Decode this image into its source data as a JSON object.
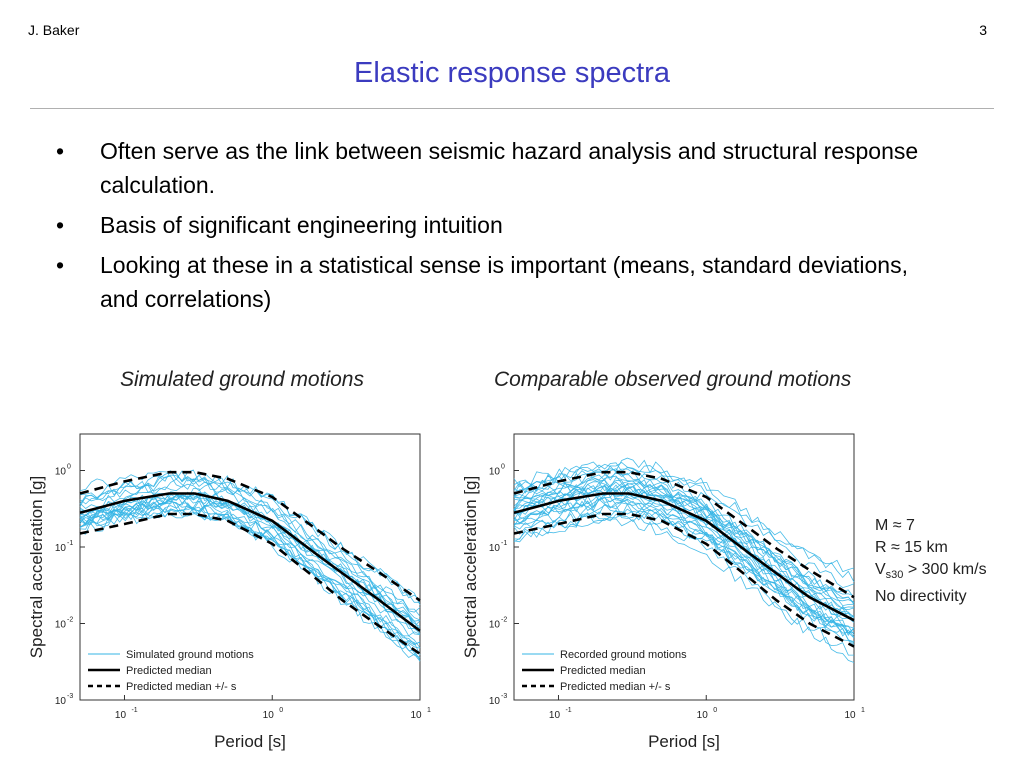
{
  "header": {
    "author": "J. Baker",
    "page_number": "3"
  },
  "title": "Elastic response spectra",
  "bullets": [
    "Often serve as the link between seismic hazard analysis and structural response calculation.",
    "Basis of significant engineering intuition",
    "Looking at these in a statistical sense is important (means, standard deviations, and correlations)"
  ],
  "captions": {
    "left": "Simulated ground motions",
    "right": "Comparable observed ground motions"
  },
  "scenario": {
    "m": "M ≈ 7",
    "r": "R ≈ 15 km",
    "vs_base": "V",
    "vs_sub": "s30",
    "vs_rest": " > 300 km/s",
    "directivity": "No directivity"
  },
  "colors": {
    "title": "#3b3bbf",
    "motions": "#35b5e5",
    "median": "#000000"
  },
  "chart_data": [
    {
      "type": "line",
      "xlabel": "Period [s]",
      "ylabel": "Spectral acceleration [g]",
      "xscale": "log",
      "yscale": "log",
      "xlim": [
        0.05,
        10
      ],
      "ylim": [
        0.001,
        3
      ],
      "x_ticks": [
        {
          "base": "10",
          "exp": "-1"
        },
        {
          "base": "10",
          "exp": "0"
        },
        {
          "base": "10",
          "exp": "1"
        }
      ],
      "y_ticks": [
        {
          "base": "10",
          "exp": "0"
        },
        {
          "base": "10",
          "exp": "-1"
        },
        {
          "base": "10",
          "exp": "-2"
        },
        {
          "base": "10",
          "exp": "-3"
        }
      ],
      "legend": [
        "Simulated ground motions",
        "Predicted median",
        "Predicted median +/-   s"
      ],
      "legend_position": "bottom-left",
      "x": [
        0.05,
        0.1,
        0.2,
        0.3,
        0.5,
        1,
        2,
        3,
        5,
        10
      ],
      "series": [
        {
          "name": "Predicted median",
          "values": [
            0.28,
            0.4,
            0.5,
            0.5,
            0.4,
            0.22,
            0.08,
            0.045,
            0.022,
            0.008
          ]
        },
        {
          "name": "Predicted median +/-   s",
          "values": [
            0.5,
            0.72,
            0.95,
            0.95,
            0.78,
            0.45,
            0.17,
            0.095,
            0.05,
            0.02
          ]
        },
        {
          "name": "Predicted median +/-   s",
          "values": [
            0.15,
            0.2,
            0.27,
            0.27,
            0.22,
            0.11,
            0.038,
            0.02,
            0.01,
            0.004
          ]
        }
      ],
      "motion_count": 24,
      "motion_spread": 0.55,
      "motion_seed": 7
    },
    {
      "type": "line",
      "xlabel": "Period [s]",
      "ylabel": "Spectral acceleration [g]",
      "xscale": "log",
      "yscale": "log",
      "xlim": [
        0.05,
        10
      ],
      "ylim": [
        0.001,
        3
      ],
      "x_ticks": [
        {
          "base": "10",
          "exp": "-1"
        },
        {
          "base": "10",
          "exp": "0"
        },
        {
          "base": "10",
          "exp": "1"
        }
      ],
      "y_ticks": [
        {
          "base": "10",
          "exp": "0"
        },
        {
          "base": "10",
          "exp": "-1"
        },
        {
          "base": "10",
          "exp": "-2"
        },
        {
          "base": "10",
          "exp": "-3"
        }
      ],
      "legend": [
        "Recorded ground motions",
        "Predicted median",
        "Predicted median +/-   s"
      ],
      "legend_position": "bottom-left",
      "x": [
        0.05,
        0.1,
        0.2,
        0.3,
        0.5,
        1,
        2,
        3,
        5,
        10
      ],
      "series": [
        {
          "name": "Predicted median",
          "values": [
            0.28,
            0.4,
            0.5,
            0.5,
            0.4,
            0.22,
            0.08,
            0.045,
            0.022,
            0.011
          ]
        },
        {
          "name": "Predicted median +/-   s",
          "values": [
            0.5,
            0.72,
            0.95,
            0.95,
            0.78,
            0.45,
            0.17,
            0.095,
            0.05,
            0.022
          ]
        },
        {
          "name": "Predicted median +/-   s",
          "values": [
            0.15,
            0.2,
            0.27,
            0.27,
            0.22,
            0.11,
            0.038,
            0.02,
            0.01,
            0.005
          ]
        }
      ],
      "motion_count": 30,
      "motion_spread": 0.8,
      "motion_seed": 19
    }
  ]
}
